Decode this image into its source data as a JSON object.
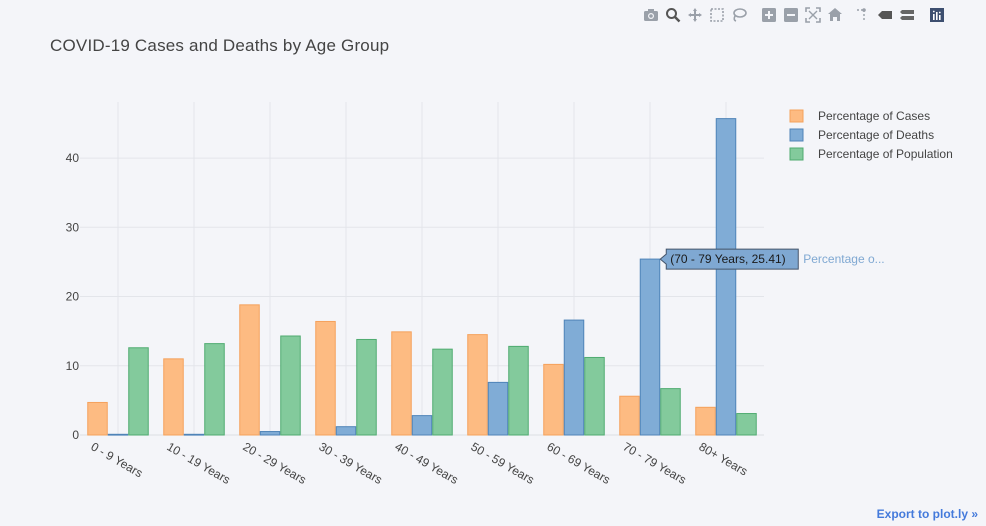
{
  "modebar": {
    "icons": [
      "camera-icon",
      "zoom-icon",
      "pan-icon",
      "box-select-icon",
      "lasso-select-icon",
      "zoom-in-icon",
      "zoom-out-icon",
      "autoscale-icon",
      "reset-axes-icon",
      "spike-lines-icon",
      "hover-closest-icon",
      "hover-compare-icon",
      "plotly-logo-icon"
    ]
  },
  "export_label": "Export to plot.ly »",
  "chart_data": {
    "type": "bar",
    "title": "COVID-19 Cases and Deaths by Age Group",
    "categories": [
      "0 - 9 Years",
      "10 - 19 Years",
      "20 - 29 Years",
      "30 - 39 Years",
      "40 - 49 Years",
      "50 - 59 Years",
      "60 - 69 Years",
      "70 - 79 Years",
      "80+ Years"
    ],
    "series": [
      {
        "name": "Percentage of Cases",
        "values": [
          4.7,
          11.0,
          18.8,
          16.4,
          14.9,
          14.5,
          10.2,
          5.6,
          4.0
        ],
        "color": "#fdbb82",
        "stroke": "#f5a25c"
      },
      {
        "name": "Percentage of Deaths",
        "values": [
          0.1,
          0.1,
          0.5,
          1.2,
          2.8,
          7.6,
          16.6,
          25.41,
          45.7
        ],
        "color": "#80acd6",
        "stroke": "#4f84b8"
      },
      {
        "name": "Percentage of Population",
        "values": [
          12.6,
          13.2,
          14.3,
          13.8,
          12.4,
          12.8,
          11.2,
          6.7,
          3.1
        ],
        "color": "#83ca9c",
        "stroke": "#4fab70"
      }
    ],
    "yticks": [
      0,
      10,
      20,
      30,
      40
    ],
    "ylim": [
      0,
      48.1
    ],
    "grid": true,
    "legend_position": "top-right",
    "hover": {
      "text": "(70 - 79 Years, 25.41)",
      "series_label": "Percentage o...",
      "category": "70 - 79 Years",
      "series": "Percentage of Deaths"
    }
  }
}
